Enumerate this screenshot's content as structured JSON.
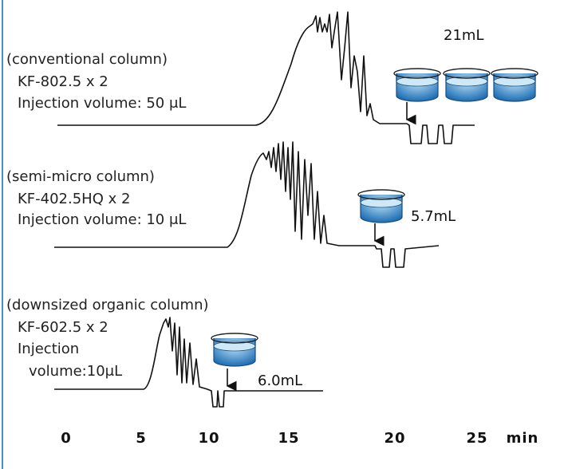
{
  "panels": [
    {
      "title": "(conventional column)",
      "column": "KF-802.5 x 2",
      "injection": [
        "Injection volume: 50 μL"
      ],
      "volume": "21mL"
    },
    {
      "title": "(semi-micro column)",
      "column": "KF-402.5HQ x 2",
      "injection": [
        "Injection volume: 10 μL"
      ],
      "volume": "5.7mL"
    },
    {
      "title": "(downsized organic column)",
      "column": "KF-602.5 x 2",
      "injection": [
        "Injection",
        "volume:10μL"
      ],
      "volume": "6.0mL"
    }
  ],
  "axis": {
    "ticks": [
      "0",
      "5",
      "10",
      "15",
      "20",
      "25"
    ],
    "unit": "min"
  }
}
